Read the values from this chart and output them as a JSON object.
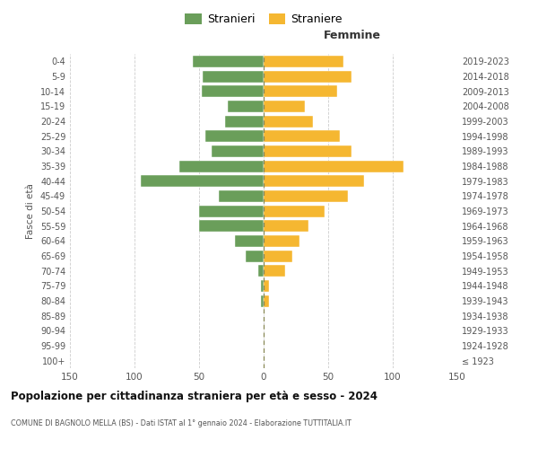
{
  "age_groups": [
    "100+",
    "95-99",
    "90-94",
    "85-89",
    "80-84",
    "75-79",
    "70-74",
    "65-69",
    "60-64",
    "55-59",
    "50-54",
    "45-49",
    "40-44",
    "35-39",
    "30-34",
    "25-29",
    "20-24",
    "15-19",
    "10-14",
    "5-9",
    "0-4"
  ],
  "birth_years": [
    "≤ 1923",
    "1924-1928",
    "1929-1933",
    "1934-1938",
    "1939-1943",
    "1944-1948",
    "1949-1953",
    "1954-1958",
    "1959-1963",
    "1964-1968",
    "1969-1973",
    "1974-1978",
    "1979-1983",
    "1984-1988",
    "1989-1993",
    "1994-1998",
    "1999-2003",
    "2004-2008",
    "2009-2013",
    "2014-2018",
    "2019-2023"
  ],
  "males": [
    0,
    0,
    0,
    0,
    2,
    2,
    4,
    14,
    22,
    50,
    50,
    35,
    95,
    65,
    40,
    45,
    30,
    28,
    48,
    47,
    55
  ],
  "females": [
    0,
    0,
    0,
    0,
    4,
    4,
    17,
    22,
    28,
    35,
    47,
    65,
    78,
    108,
    68,
    59,
    38,
    32,
    57,
    68,
    62
  ],
  "male_color": "#6a9e5a",
  "female_color": "#f5b731",
  "grid_color": "#cccccc",
  "center_line_color": "#888855",
  "background_color": "#ffffff",
  "title": "Popolazione per cittadinanza straniera per età e sesso - 2024",
  "subtitle": "COMUNE DI BAGNOLO MELLA (BS) - Dati ISTAT al 1° gennaio 2024 - Elaborazione TUTTITALIA.IT",
  "ylabel_left": "Fasce di età",
  "xlabel_right": "Femmine",
  "legend_male": "Stranieri",
  "legend_female": "Straniere",
  "xlim": 150,
  "xticks": [
    -150,
    -100,
    -50,
    0,
    50,
    100,
    150
  ],
  "xticklabels": [
    "150",
    "100",
    "50",
    "0",
    "50",
    "100",
    "150"
  ]
}
